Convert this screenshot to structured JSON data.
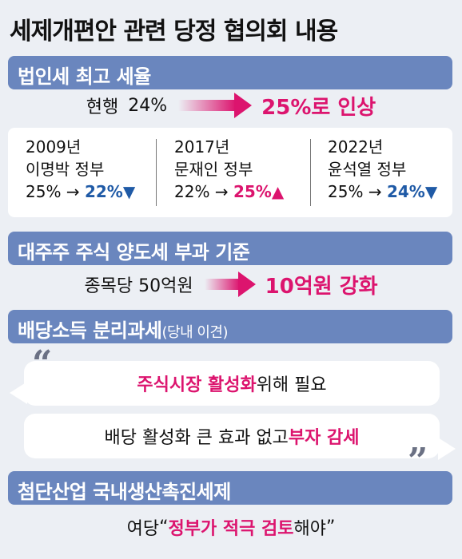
{
  "title": "세제개편안 관련 당정 협의회 내용",
  "sections": {
    "corp_tax": {
      "header": "법인세 최고 세율",
      "current_label": "현행",
      "current_value": "24%",
      "proposal": "25%로 인상",
      "governments": [
        {
          "year": "2009년",
          "name": "이명박 정부",
          "from": "25%",
          "arrow": "→",
          "to": "22%",
          "dir": "▼"
        },
        {
          "year": "2017년",
          "name": "문재인 정부",
          "from": "22%",
          "arrow": "→",
          "to": "25%",
          "dir": "▲"
        },
        {
          "year": "2022년",
          "name": "윤석열 정부",
          "from": "25%",
          "arrow": "→",
          "to": "24%",
          "dir": "▼"
        }
      ]
    },
    "capital_gains": {
      "header": "대주주 주식 양도세 부과 기준",
      "current": "종목당 50억원",
      "proposal": "10억원 강화"
    },
    "dividend": {
      "header": "배당소득 분리과세",
      "header_note": "(당내 이견)",
      "open_quote": "“",
      "close_quote": "”",
      "opinion1_emph": "주식시장 활성화",
      "opinion1_rest": " 위해 필요",
      "opinion2_rest": "배당 활성화 큰 효과 없고 ",
      "opinion2_emph": "부자 감세"
    },
    "hightech": {
      "header": "첨단산업 국내생산촉진세제",
      "speaker": "여당 ",
      "quote_open": "“",
      "emph": "정부가 적극 검토",
      "rest": "해야",
      "quote_close": "”"
    }
  },
  "colors": {
    "section_bar": "#6a86be",
    "emphasis": "#dc146e",
    "decrease": "#1f5aa6",
    "background": "#eceff4"
  }
}
